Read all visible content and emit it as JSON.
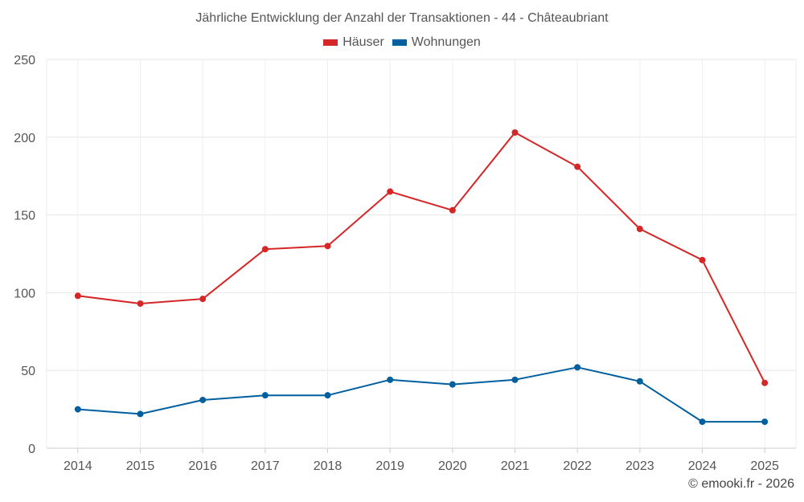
{
  "chart_data": {
    "type": "line",
    "title": "Jährliche Entwicklung der Anzahl der Transaktionen - 44 - Châteaubriant",
    "categories": [
      "2014",
      "2015",
      "2016",
      "2017",
      "2018",
      "2019",
      "2020",
      "2021",
      "2022",
      "2023",
      "2024",
      "2025"
    ],
    "series": [
      {
        "name": "Häuser",
        "color": "#d62728",
        "values": [
          98,
          93,
          96,
          128,
          130,
          165,
          153,
          203,
          181,
          141,
          121,
          42
        ]
      },
      {
        "name": "Wohnungen",
        "color": "#005f9e",
        "values": [
          25,
          22,
          31,
          34,
          34,
          44,
          41,
          44,
          52,
          43,
          17,
          17
        ]
      }
    ],
    "yticks": [
      "0",
      "50",
      "100",
      "150",
      "200",
      "250"
    ],
    "ylim": [
      0,
      250
    ],
    "xlabel": "",
    "ylabel": "",
    "grid": true,
    "legend": "top-center"
  },
  "credit": "© emooki.fr - 2026"
}
